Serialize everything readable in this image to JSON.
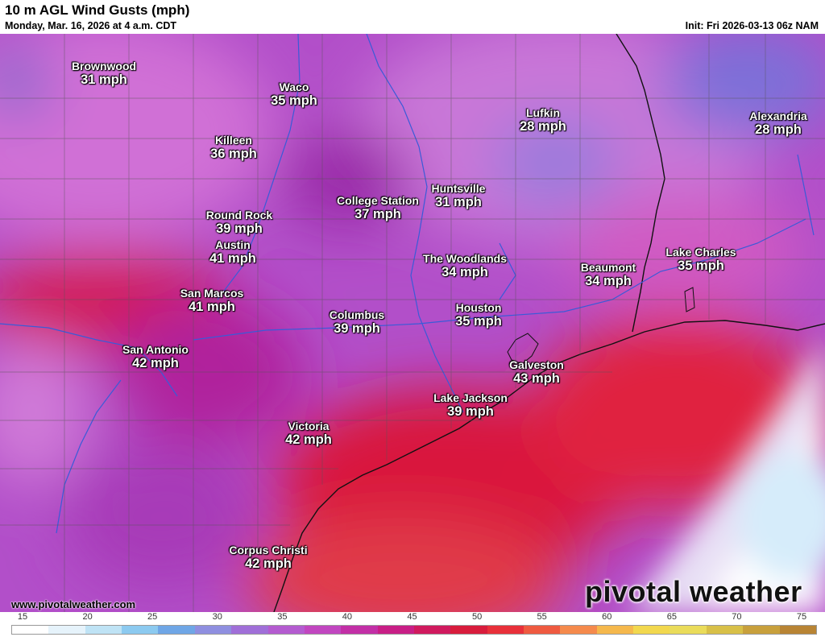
{
  "header": {
    "title": "10 m AGL Wind Gusts (mph)",
    "subtitle": "Monday, Mar. 16, 2026 at 4 a.m. CDT",
    "init": "Init: Fri 2026-03-13 06z NAM"
  },
  "cities": [
    {
      "name": "Brownwood",
      "value": "31 mph"
    },
    {
      "name": "Waco",
      "value": "35 mph"
    },
    {
      "name": "Lufkin",
      "value": "28 mph"
    },
    {
      "name": "Alexandria",
      "value": "28 mph"
    },
    {
      "name": "Killeen",
      "value": "36 mph"
    },
    {
      "name": "College Station",
      "value": "37 mph"
    },
    {
      "name": "Huntsville",
      "value": "31 mph"
    },
    {
      "name": "Round Rock",
      "value": "39 mph"
    },
    {
      "name": "Austin",
      "value": "41 mph"
    },
    {
      "name": "The Woodlands",
      "value": "34 mph"
    },
    {
      "name": "Beaumont",
      "value": "34 mph"
    },
    {
      "name": "Lake Charles",
      "value": "35 mph"
    },
    {
      "name": "San Marcos",
      "value": "41 mph"
    },
    {
      "name": "Columbus",
      "value": "39 mph"
    },
    {
      "name": "Houston",
      "value": "35 mph"
    },
    {
      "name": "San Antonio",
      "value": "42 mph"
    },
    {
      "name": "Galveston",
      "value": "43 mph"
    },
    {
      "name": "Lake Jackson",
      "value": "39 mph"
    },
    {
      "name": "Victoria",
      "value": "42 mph"
    },
    {
      "name": "Corpus Christi",
      "value": "42 mph"
    }
  ],
  "footer": {
    "website": "www.pivotalweather.com",
    "logo": "pivotal weather"
  },
  "legend": {
    "ticks": [
      "15",
      "20",
      "25",
      "30",
      "35",
      "40",
      "45",
      "50",
      "55",
      "60",
      "65",
      "70",
      "75"
    ],
    "colors": [
      "#ffffff",
      "#e6f3fb",
      "#bfe3f5",
      "#8ccaf0",
      "#6fa6e6",
      "#8f8fe0",
      "#a06fd8",
      "#b45cd0",
      "#c146c0",
      "#c22fa6",
      "#c81e86",
      "#d01a5e",
      "#d81c3c",
      "#e8303a",
      "#ef5a40",
      "#f58a4c",
      "#f5b84c",
      "#f2d84e",
      "#eadc5a",
      "#d8c048",
      "#c8a03c",
      "#b88434"
    ]
  }
}
